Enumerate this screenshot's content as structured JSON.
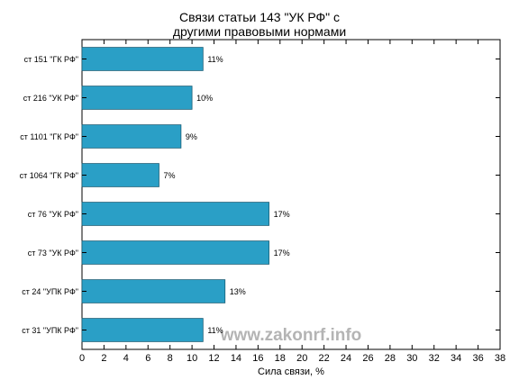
{
  "title_lines": [
    "Связи статьи 143 \"УК РФ\" с",
    "другими правовыми нормами"
  ],
  "watermark": "www.zakonrf.info",
  "colors": {
    "bar_fill": "#2a9fc6",
    "bar_stroke": "#1a5f77",
    "axis": "#000000",
    "watermark": "#b4b4b4"
  },
  "chart_data": {
    "type": "bar",
    "orientation": "horizontal",
    "title": "Связи статьи 143 \"УК РФ\" с другими правовыми нормами",
    "xlabel": "Сила связи, %",
    "ylabel": "",
    "xlim": [
      0,
      38
    ],
    "xticks": [
      "0",
      "2",
      "4",
      "6",
      "8",
      "10",
      "12",
      "14",
      "16",
      "18",
      "20",
      "22",
      "24",
      "26",
      "28",
      "30",
      "32",
      "34",
      "36",
      "38"
    ],
    "grid": false,
    "categories": [
      "ст 151 \"ГК РФ\"",
      "ст 216 \"УК РФ\"",
      "ст 1101 \"ГК РФ\"",
      "ст 1064 \"ГК РФ\"",
      "ст 76 \"УК РФ\"",
      "ст 73 \"УК РФ\"",
      "ст 24 \"УПК РФ\"",
      "ст 31 \"УПК РФ\""
    ],
    "values": [
      11,
      10,
      9,
      7,
      17,
      17,
      13,
      11
    ],
    "data_labels": [
      "11%",
      "10%",
      "9%",
      "7%",
      "17%",
      "17%",
      "13%",
      "11%"
    ]
  }
}
